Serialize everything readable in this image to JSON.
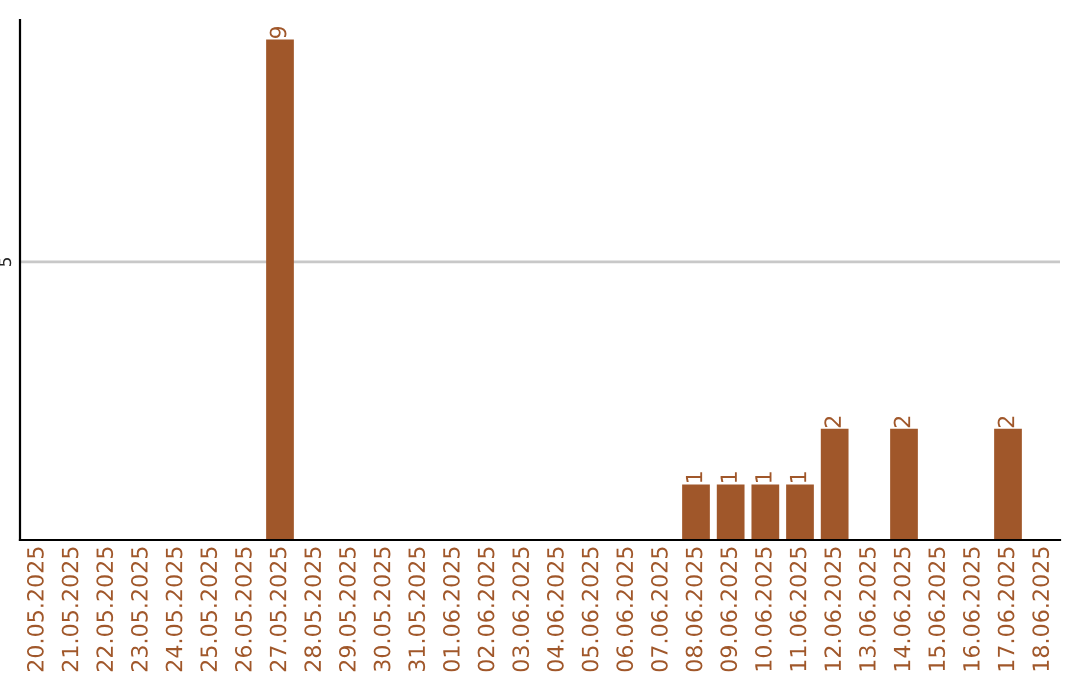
{
  "chart_data": {
    "type": "bar",
    "categories": [
      "20.05.2025",
      "21.05.2025",
      "22.05.2025",
      "23.05.2025",
      "24.05.2025",
      "25.05.2025",
      "26.05.2025",
      "27.05.2025",
      "28.05.2025",
      "29.05.2025",
      "30.05.2025",
      "31.05.2025",
      "01.06.2025",
      "02.06.2025",
      "03.06.2025",
      "04.06.2025",
      "05.06.2025",
      "06.06.2025",
      "07.06.2025",
      "08.06.2025",
      "09.06.2025",
      "10.06.2025",
      "11.06.2025",
      "12.06.2025",
      "13.06.2025",
      "14.06.2025",
      "15.06.2025",
      "16.06.2025",
      "17.06.2025",
      "18.06.2025"
    ],
    "values": [
      0,
      0,
      0,
      0,
      0,
      0,
      0,
      9,
      0,
      0,
      0,
      0,
      0,
      0,
      0,
      0,
      0,
      0,
      0,
      1,
      1,
      1,
      1,
      2,
      0,
      2,
      0,
      0,
      2,
      0
    ],
    "value_labels": [
      null,
      null,
      null,
      null,
      null,
      null,
      null,
      "9",
      null,
      null,
      null,
      null,
      null,
      null,
      null,
      null,
      null,
      null,
      null,
      "1",
      "1",
      "1",
      "1",
      "2",
      null,
      "2",
      null,
      null,
      "2",
      null
    ],
    "color": "#a0572a",
    "ylim": [
      0,
      9.35
    ],
    "yticks": [
      5
    ],
    "grid": "y"
  }
}
